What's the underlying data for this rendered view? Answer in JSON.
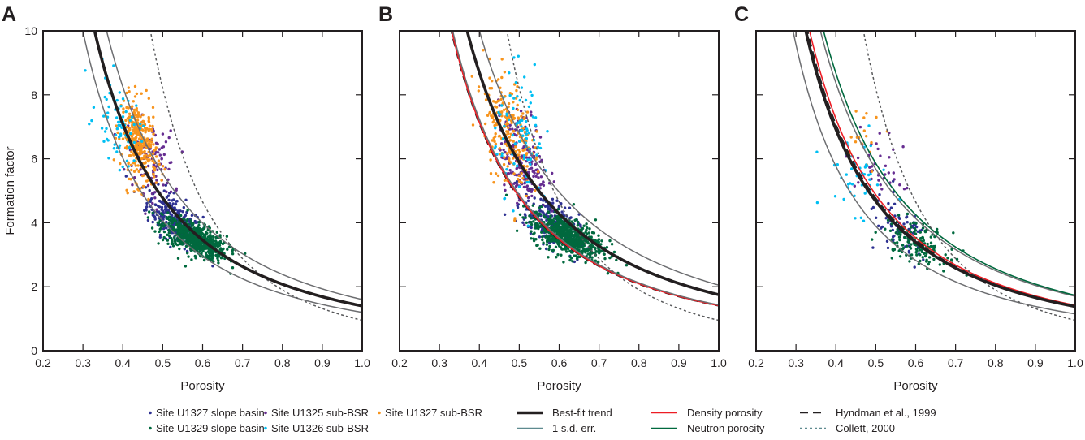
{
  "chart_data": [
    {
      "type": "scatter",
      "panel": "A",
      "title": "",
      "xlabel": "Porosity",
      "ylabel": "Formation factor",
      "xlim": [
        0.2,
        1.0
      ],
      "ylim": [
        0,
        10
      ],
      "xticks": [
        "0.2",
        "0.3",
        "0.4",
        "0.5",
        "0.6",
        "0.7",
        "0.8",
        "0.9",
        "1.0"
      ],
      "yticks": [
        "0",
        "2",
        "4",
        "6",
        "8",
        "10"
      ],
      "show_y_tick_labels": true,
      "grid": false,
      "curves": [
        {
          "name": "1 s.d. err. (upper)",
          "style": "sd",
          "a": 1.6,
          "m": 1.79
        },
        {
          "name": "1 s.d. err. (lower)",
          "style": "sd",
          "a": 1.2,
          "m": 1.76
        },
        {
          "name": "Collett, 2000",
          "style": "collett",
          "a": 0.95,
          "m": 3.11
        },
        {
          "name": "Best-fit trend",
          "style": "best",
          "a": 1.4,
          "m": 1.77
        }
      ],
      "scatter_clusters": [
        {
          "series": "Site U1327 sub-BSR",
          "n": 330,
          "x_mean": 0.44,
          "x_sd": 0.022,
          "y_mean": 6.5,
          "y_sd": 0.65,
          "corr": -0.3
        },
        {
          "series": "Site U1326 sub-BSR",
          "n": 70,
          "x_mean": 0.39,
          "x_sd": 0.028,
          "y_mean": 7.1,
          "y_sd": 0.7,
          "corr": -0.4
        },
        {
          "series": "Site U1325 sub-BSR",
          "n": 110,
          "x_mean": 0.47,
          "x_sd": 0.03,
          "y_mean": 6.0,
          "y_sd": 0.6,
          "corr": -0.3
        },
        {
          "series": "Site U1327 slope basin",
          "n": 260,
          "x_mean": 0.53,
          "x_sd": 0.035,
          "y_mean": 4.1,
          "y_sd": 0.45,
          "corr": -0.6
        },
        {
          "series": "Site U1329 slope basin",
          "n": 650,
          "x_mean": 0.58,
          "x_sd": 0.04,
          "y_mean": 3.5,
          "y_sd": 0.32,
          "corr": -0.65
        }
      ]
    },
    {
      "type": "scatter",
      "panel": "B",
      "title": "",
      "xlabel": "Porosity",
      "ylabel": "",
      "xlim": [
        0.2,
        1.0
      ],
      "ylim": [
        0,
        10
      ],
      "xticks": [
        "0.2",
        "0.3",
        "0.4",
        "0.5",
        "0.6",
        "0.7",
        "0.8",
        "0.9",
        "1.0"
      ],
      "yticks": [
        "0",
        "2",
        "4",
        "6",
        "8",
        "10"
      ],
      "show_y_tick_labels": false,
      "grid": false,
      "curves": [
        {
          "name": "Hyndman et al., 1999",
          "style": "hyndman",
          "a": 1.4,
          "m": 1.77
        },
        {
          "name": "Density porosity",
          "style": "density",
          "a": 1.41,
          "m": 1.77
        },
        {
          "name": "1 s.d. err. (lower)",
          "style": "sd",
          "a": 1.43,
          "m": 1.77
        },
        {
          "name": "1 s.d. err. (upper)",
          "style": "sd",
          "a": 2.05,
          "m": 1.73
        },
        {
          "name": "Collett, 2000",
          "style": "collett",
          "a": 0.95,
          "m": 3.11
        },
        {
          "name": "Best-fit trend",
          "style": "best",
          "a": 1.75,
          "m": 1.75
        }
      ],
      "scatter_clusters": [
        {
          "series": "Site U1327 sub-BSR",
          "n": 220,
          "x_mean": 0.47,
          "x_sd": 0.03,
          "y_mean": 6.9,
          "y_sd": 0.9,
          "corr": -0.35
        },
        {
          "series": "Site U1326 sub-BSR",
          "n": 90,
          "x_mean": 0.51,
          "x_sd": 0.035,
          "y_mean": 6.6,
          "y_sd": 1.0,
          "corr": -0.3
        },
        {
          "series": "Site U1325 sub-BSR",
          "n": 200,
          "x_mean": 0.51,
          "x_sd": 0.03,
          "y_mean": 6.0,
          "y_sd": 0.7,
          "corr": -0.3
        },
        {
          "series": "Site U1327 slope basin",
          "n": 260,
          "x_mean": 0.58,
          "x_sd": 0.035,
          "y_mean": 4.0,
          "y_sd": 0.45,
          "corr": -0.55
        },
        {
          "series": "Site U1329 slope basin",
          "n": 650,
          "x_mean": 0.62,
          "x_sd": 0.045,
          "y_mean": 3.6,
          "y_sd": 0.35,
          "corr": -0.55
        }
      ]
    },
    {
      "type": "scatter",
      "panel": "C",
      "title": "",
      "xlabel": "Porosity",
      "ylabel": "",
      "xlim": [
        0.2,
        1.0
      ],
      "ylim": [
        0,
        10
      ],
      "xticks": [
        "0.2",
        "0.3",
        "0.4",
        "0.5",
        "0.6",
        "0.7",
        "0.8",
        "0.9",
        "1.0"
      ],
      "yticks": [
        "0",
        "2",
        "4",
        "6",
        "8",
        "10"
      ],
      "show_y_tick_labels": false,
      "grid": false,
      "curves": [
        {
          "name": "1 s.d. err. (lower)",
          "style": "sd",
          "a": 1.15,
          "m": 1.76
        },
        {
          "name": "1 s.d. err. (upper)",
          "style": "sd",
          "a": 1.7,
          "m": 1.74
        },
        {
          "name": "Neutron porosity",
          "style": "neutron",
          "a": 1.73,
          "m": 1.76
        },
        {
          "name": "Hyndman et al., 1999",
          "style": "hyndman",
          "a": 1.4,
          "m": 1.77
        },
        {
          "name": "Density porosity",
          "style": "density",
          "a": 1.42,
          "m": 1.78
        },
        {
          "name": "Collett, 2000",
          "style": "collett",
          "a": 0.95,
          "m": 3.11
        },
        {
          "name": "Best-fit trend",
          "style": "best",
          "a": 1.38,
          "m": 1.76
        }
      ],
      "scatter_clusters": [
        {
          "series": "Site U1327 sub-BSR",
          "n": 18,
          "x_mean": 0.47,
          "x_sd": 0.025,
          "y_mean": 6.5,
          "y_sd": 0.6,
          "corr": -0.3
        },
        {
          "series": "Site U1326 sub-BSR",
          "n": 45,
          "x_mean": 0.45,
          "x_sd": 0.04,
          "y_mean": 5.5,
          "y_sd": 0.6,
          "corr": -0.2
        },
        {
          "series": "Site U1325 sub-BSR",
          "n": 40,
          "x_mean": 0.51,
          "x_sd": 0.03,
          "y_mean": 5.7,
          "y_sd": 0.55,
          "corr": -0.3
        },
        {
          "series": "Site U1327 slope basin",
          "n": 70,
          "x_mean": 0.56,
          "x_sd": 0.04,
          "y_mean": 3.7,
          "y_sd": 0.5,
          "corr": -0.4
        },
        {
          "series": "Site U1329 slope basin",
          "n": 160,
          "x_mean": 0.6,
          "x_sd": 0.04,
          "y_mean": 3.4,
          "y_sd": 0.35,
          "corr": -0.45
        }
      ]
    }
  ],
  "series_colors": {
    "Site U1327 slope basin": "#2e3192",
    "Site U1329 slope basin": "#00693e",
    "Site U1325 sub-BSR": "#662d91",
    "Site U1326 sub-BSR": "#00bff3",
    "Site U1327 sub-BSR": "#f7941d"
  },
  "curve_colors": {
    "best": "#231f20",
    "sd": "#6d6e71",
    "density": "#ed1c24",
    "neutron": "#00693e",
    "hyndman": "#231f20",
    "collett": "#58595b"
  },
  "legend": {
    "point_items": [
      {
        "label": "Site U1327 slope basin",
        "color": "#2e3192"
      },
      {
        "label": "Site U1329 slope basin",
        "color": "#00693e"
      },
      {
        "label": "Site U1325 sub-BSR",
        "color": "#662d91"
      },
      {
        "label": "Site U1326 sub-BSR",
        "color": "#00bff3"
      },
      {
        "label": "Site U1327 sub-BSR",
        "color": "#f7941d"
      }
    ],
    "line_items": [
      {
        "label": "Best-fit trend",
        "style": "best"
      },
      {
        "label": "1 s.d. err.",
        "style": "sd"
      },
      {
        "label": "Density porosity",
        "style": "density"
      },
      {
        "label": "Neutron porosity",
        "style": "neutron"
      },
      {
        "label": "Hyndman et al., 1999",
        "style": "hyndman"
      },
      {
        "label": "Collett, 2000",
        "style": "collett"
      }
    ]
  }
}
